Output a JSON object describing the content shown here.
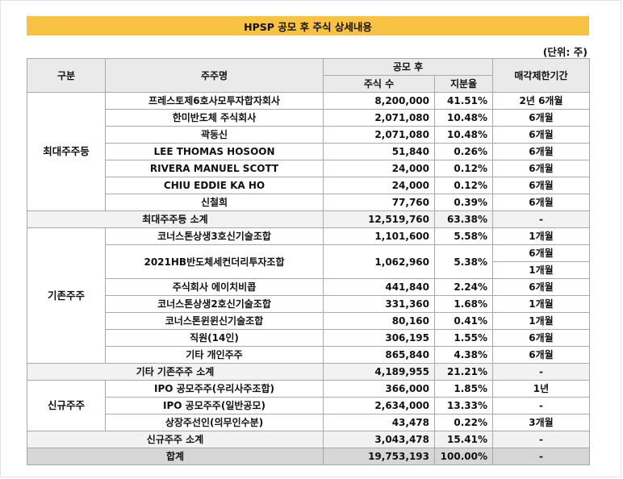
{
  "title": "HPSP 공모 후 주식 상세내용",
  "unit": "(단위: 주)",
  "header": {
    "category": "구분",
    "shareholder": "주주명",
    "post_ipo": "공모 후",
    "shares": "주식 수",
    "ratio": "지분율",
    "lockup": "매각제한기간"
  },
  "groups": {
    "largest": {
      "label": "최대주주등",
      "rows": [
        {
          "name": "프레스토제6호사모투자합자회사",
          "shares": "8,200,000",
          "ratio": "41.51%",
          "lockup": "2년 6개월"
        },
        {
          "name": "한미반도체 주식회사",
          "shares": "2,071,080",
          "ratio": "10.48%",
          "lockup": "6개월"
        },
        {
          "name": "곽동신",
          "shares": "2,071,080",
          "ratio": "10.48%",
          "lockup": "6개월"
        },
        {
          "name": "LEE THOMAS HOSOON",
          "shares": "51,840",
          "ratio": "0.26%",
          "lockup": "6개월"
        },
        {
          "name": "RIVERA MANUEL SCOTT",
          "shares": "24,000",
          "ratio": "0.12%",
          "lockup": "6개월"
        },
        {
          "name": "CHIU EDDIE KA HO",
          "shares": "24,000",
          "ratio": "0.12%",
          "lockup": "6개월"
        },
        {
          "name": "신철희",
          "shares": "77,760",
          "ratio": "0.39%",
          "lockup": "6개월"
        }
      ],
      "subtotal": {
        "label": "최대주주등 소계",
        "shares": "12,519,760",
        "ratio": "63.38%",
        "lockup": "-"
      }
    },
    "existing": {
      "label": "기존주주",
      "rows": [
        {
          "name": "코너스톤상생3호신기술조합",
          "shares": "1,101,600",
          "ratio": "5.58%",
          "lockup": "1개월"
        },
        {
          "name": "2021HB반도체세컨더리투자조합",
          "shares": "1,062,960",
          "ratio": "5.38%",
          "lockup": "6개월",
          "lockup2": "1개월"
        },
        {
          "name": "주식회사 에이치비콥",
          "shares": "441,840",
          "ratio": "2.24%",
          "lockup": "6개월"
        },
        {
          "name": "코너스톤상생2호신기술조합",
          "shares": "331,360",
          "ratio": "1.68%",
          "lockup": "1개월"
        },
        {
          "name": "코너스톤윈윈신기술조합",
          "shares": "80,160",
          "ratio": "0.41%",
          "lockup": "1개월"
        },
        {
          "name": "직원(14인)",
          "shares": "306,195",
          "ratio": "1.55%",
          "lockup": "6개월"
        },
        {
          "name": "기타 개인주주",
          "shares": "865,840",
          "ratio": "4.38%",
          "lockup": "6개월"
        }
      ],
      "subtotal": {
        "label": "기타 기존주주 소계",
        "shares": "4,189,955",
        "ratio": "21.21%",
        "lockup": "-"
      }
    },
    "new": {
      "label": "신규주주",
      "rows": [
        {
          "name": "IPO 공모주주(우리사주조합)",
          "shares": "366,000",
          "ratio": "1.85%",
          "lockup": "1년"
        },
        {
          "name": "IPO 공모주주(일반공모)",
          "shares": "2,634,000",
          "ratio": "13.33%",
          "lockup": "-"
        },
        {
          "name": "상장주선인(의무인수분)",
          "shares": "43,478",
          "ratio": "0.22%",
          "lockup": "3개월"
        }
      ],
      "subtotal": {
        "label": "신규주주 소계",
        "shares": "3,043,478",
        "ratio": "15.41%",
        "lockup": "-"
      }
    }
  },
  "total": {
    "label": "합계",
    "shares": "19,753,193",
    "ratio": "100.00%",
    "lockup": "-"
  }
}
